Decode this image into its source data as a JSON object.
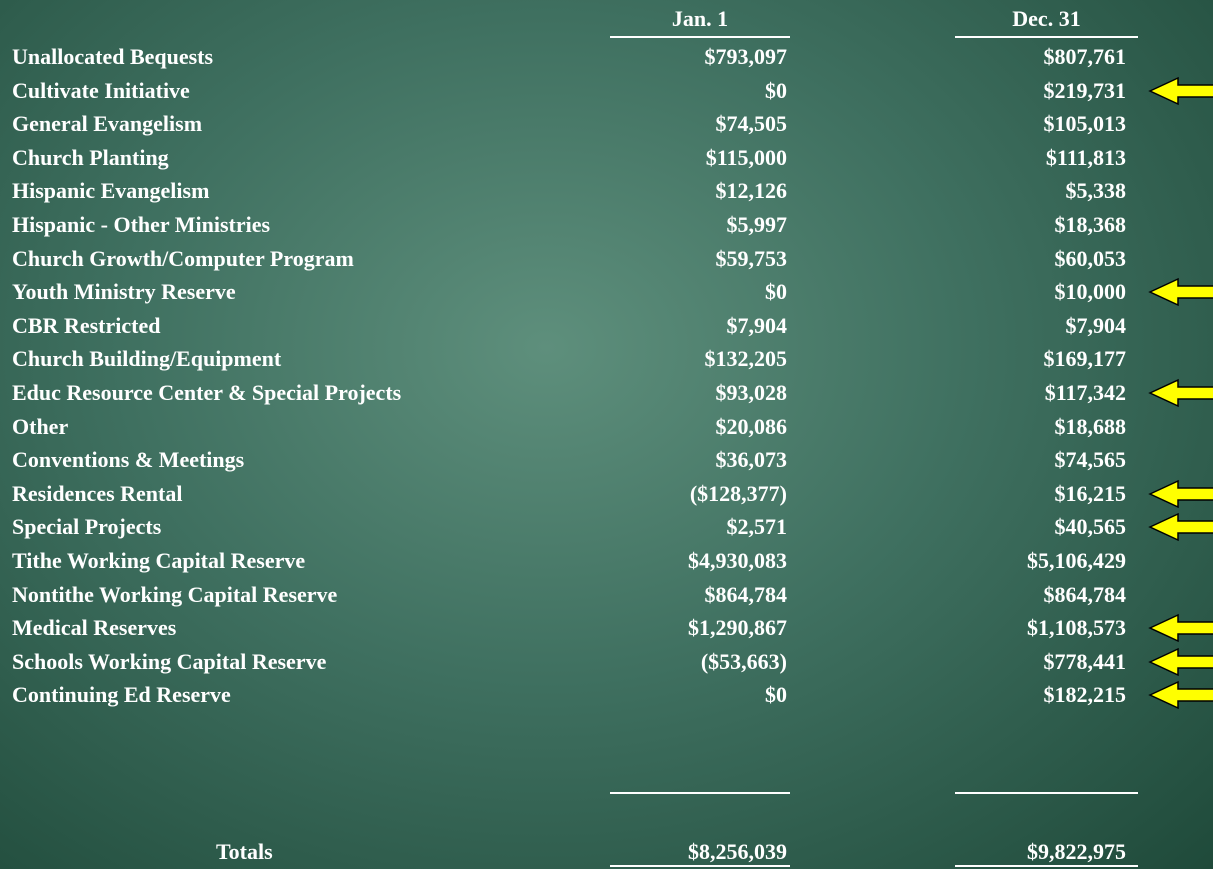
{
  "table": {
    "header": [
      "Jan. 1",
      "Dec. 31"
    ],
    "rows": [
      [
        "Unallocated Bequests",
        "$793,097",
        "$807,761"
      ],
      [
        "Cultivate Initiative",
        "$0",
        "$219,731"
      ],
      [
        "General Evangelism",
        "$74,505",
        "$105,013"
      ],
      [
        "Church Planting",
        "$115,000",
        "$111,813"
      ],
      [
        "Hispanic Evangelism",
        "$12,126",
        "$5,338"
      ],
      [
        "Hispanic - Other Ministries",
        "$5,997",
        "$18,368"
      ],
      [
        "Church Growth/Computer Program",
        "$59,753",
        "$60,053"
      ],
      [
        "Youth Ministry Reserve",
        "$0",
        "$10,000"
      ],
      [
        "CBR Restricted",
        "$7,904",
        "$7,904"
      ],
      [
        "Church Building/Equipment",
        "$132,205",
        "$169,177"
      ],
      [
        "Educ Resource Center & Special Projects",
        "$93,028",
        "$117,342"
      ],
      [
        "Other",
        "$20,086",
        "$18,688"
      ],
      [
        "Conventions & Meetings",
        "$36,073",
        "$74,565"
      ],
      [
        "Residences Rental",
        "($128,377)",
        "$16,215"
      ],
      [
        "Special Projects",
        "$2,571",
        "$40,565"
      ],
      [
        "Tithe Working Capital Reserve",
        "$4,930,083",
        "$5,106,429"
      ],
      [
        "Nontithe Working Capital Reserve",
        "$864,784",
        "$864,784"
      ],
      [
        "Medical Reserves",
        "$1,290,867",
        "$1,108,573"
      ],
      [
        "Schools Working Capital Reserve",
        "($53,663)",
        "$778,441"
      ],
      [
        "Continuing Ed Reserve",
        "$0",
        "$182,215"
      ]
    ],
    "totals": [
      "Totals",
      "$8,256,039",
      "$9,822,975"
    ]
  }
}
